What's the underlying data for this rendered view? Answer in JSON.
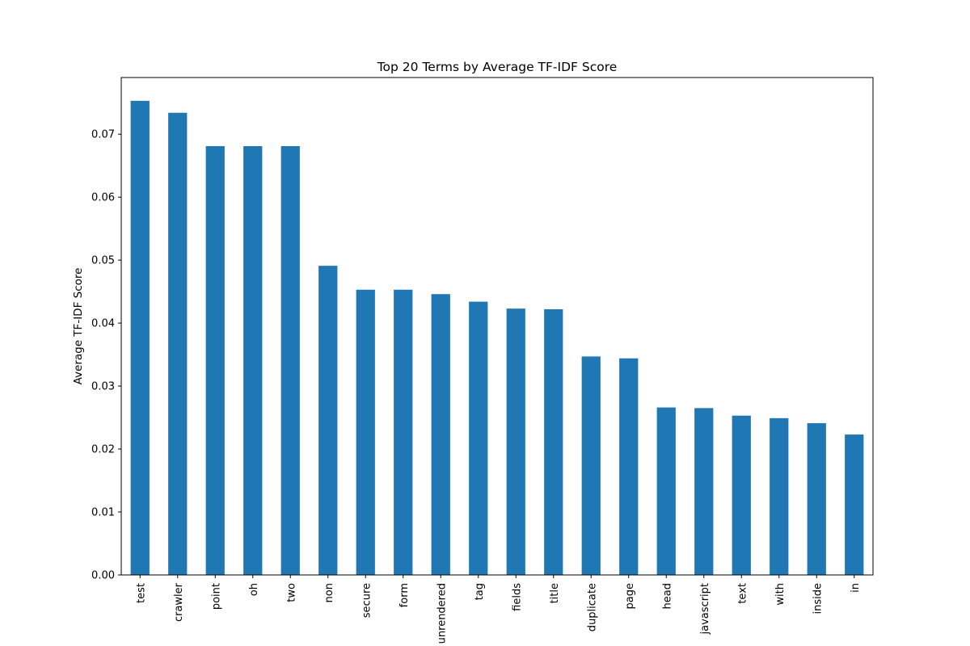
{
  "chart_data": {
    "type": "bar",
    "title": "Top 20 Terms by Average TF-IDF Score",
    "xlabel": "",
    "ylabel": "Average TF-IDF Score",
    "categories": [
      "test",
      "crawler",
      "point",
      "oh",
      "two",
      "non",
      "secure",
      "form",
      "unrendered",
      "tag",
      "fields",
      "title",
      "duplicate",
      "page",
      "head",
      "javascript",
      "text",
      "with",
      "inside",
      "in"
    ],
    "values": [
      0.0753,
      0.0734,
      0.0681,
      0.0681,
      0.0681,
      0.0491,
      0.0453,
      0.0453,
      0.0446,
      0.0434,
      0.0423,
      0.0422,
      0.0347,
      0.0344,
      0.0266,
      0.0265,
      0.0253,
      0.0249,
      0.0241,
      0.0223
    ],
    "yticks": [
      "0.00",
      "0.01",
      "0.02",
      "0.03",
      "0.04",
      "0.05",
      "0.06",
      "0.07"
    ],
    "ylim": [
      0,
      0.079
    ],
    "grid": false,
    "bar_color": "#1f77b4"
  }
}
